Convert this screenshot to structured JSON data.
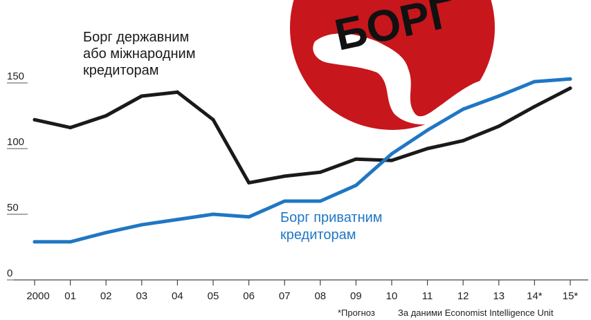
{
  "chart_data": {
    "type": "line",
    "categories": [
      "2000",
      "01",
      "02",
      "03",
      "04",
      "05",
      "06",
      "07",
      "08",
      "09",
      "10",
      "11",
      "12",
      "13",
      "14*",
      "15*"
    ],
    "ylim": [
      0,
      200
    ],
    "yticks": [
      "0",
      "50",
      "100",
      "150"
    ],
    "series": [
      {
        "name": "Борг державним або міжнародним кредиторам",
        "label_lines": [
          "Борг державним",
          "або міжнародним",
          "кредиторам"
        ],
        "color": "#1a1a1a",
        "values": [
          122,
          116,
          125,
          140,
          143,
          122,
          74,
          79,
          82,
          92,
          91,
          100,
          106,
          117,
          132,
          146
        ]
      },
      {
        "name": "Борг приватним кредиторам",
        "label_lines": [
          "Борг приватним",
          "кредиторам"
        ],
        "color": "#1f77c4",
        "values": [
          29,
          29,
          36,
          42,
          46,
          50,
          48,
          60,
          60,
          72,
          96,
          114,
          130,
          140,
          151,
          153
        ]
      }
    ]
  },
  "footnote": {
    "forecast": "*Прогноз",
    "source": "За даними Economist Intelligence Unit"
  },
  "emblem": {
    "text": "БОРГ",
    "color": "#c8161d"
  }
}
